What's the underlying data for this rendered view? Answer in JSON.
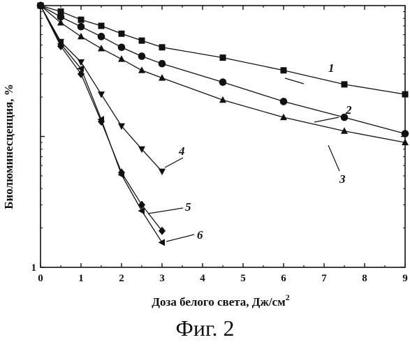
{
  "chart_data": {
    "type": "line",
    "xlabel": "Доза белого света, Дж/см",
    "xlabel_sup": "2",
    "ylabel": "Биолюминесценция, %",
    "ylog": true,
    "xlim": [
      0,
      9
    ],
    "ylim": [
      1,
      100
    ],
    "xticks": [
      "0",
      "1",
      "2",
      "3",
      "4",
      "5",
      "6",
      "7",
      "8",
      "9"
    ],
    "yticks": [
      {
        "value": 10,
        "label": ""
      },
      {
        "value": 1,
        "label": "1"
      }
    ],
    "series": [
      {
        "name": "1",
        "marker": "square",
        "x": [
          0,
          0.5,
          1,
          1.5,
          2,
          2.5,
          3,
          4.5,
          6,
          7.5,
          9
        ],
        "y": [
          100,
          90,
          78,
          70,
          61,
          54,
          48,
          40,
          32,
          25,
          21
        ]
      },
      {
        "name": "2",
        "marker": "circle",
        "x": [
          0,
          0.5,
          1,
          1.5,
          2,
          2.5,
          3,
          4.5,
          6,
          7.5,
          9
        ],
        "y": [
          100,
          82,
          69,
          58,
          48,
          41,
          36,
          26,
          18.5,
          14,
          10.5
        ]
      },
      {
        "name": "3",
        "marker": "triangle-up",
        "x": [
          0,
          0.5,
          1,
          1.5,
          2,
          2.5,
          3,
          4.5,
          6,
          7.5,
          9
        ],
        "y": [
          100,
          74,
          58,
          47,
          39,
          32,
          28,
          19,
          14,
          11,
          9
        ]
      },
      {
        "name": "4",
        "marker": "triangle-down",
        "x": [
          0,
          0.5,
          1,
          1.5,
          2,
          2.5,
          3
        ],
        "y": [
          100,
          53,
          37,
          21,
          12,
          8,
          5.4
        ]
      },
      {
        "name": "5",
        "marker": "diamond",
        "x": [
          0,
          0.5,
          1,
          1.5,
          2,
          2.5,
          3
        ],
        "y": [
          100,
          49,
          30,
          13,
          5.3,
          3,
          1.9
        ]
      },
      {
        "name": "6",
        "marker": "triangle-left",
        "x": [
          0,
          0.5,
          1,
          1.5,
          2,
          2.5,
          3
        ],
        "y": [
          100,
          51,
          33,
          13.5,
          5.1,
          2.7,
          1.55
        ]
      }
    ]
  },
  "caption": "Фиг. 2"
}
